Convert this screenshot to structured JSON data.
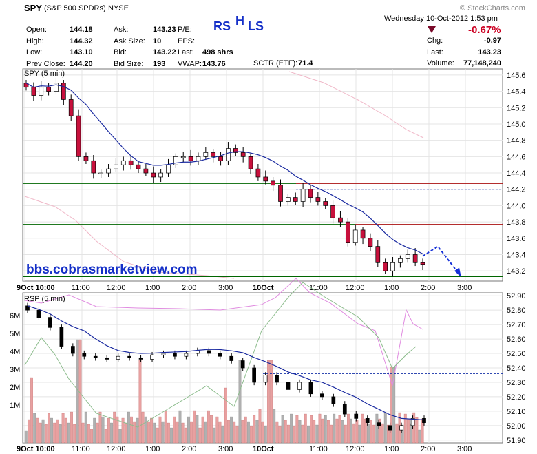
{
  "header": {
    "symbol": "SPY",
    "desc": "(S&P 500 SPDRs)",
    "exchange": "NYSE",
    "watermark": "© StockCharts.com",
    "date_line": "Wednesday  10-Oct-2012  1:53 pm",
    "change_pct": "-0.67%",
    "fields": [
      {
        "label": "Open:",
        "value": "144.18"
      },
      {
        "label": "High:",
        "value": "144.32"
      },
      {
        "label": "Low:",
        "value": "143.10"
      },
      {
        "label": "Prev Close:",
        "value": "144.20"
      }
    ],
    "fields2": [
      {
        "label": "Ask:",
        "value": "143.23"
      },
      {
        "label": "Ask Size:",
        "value": "10"
      },
      {
        "label": "Bid:",
        "value": "143.22"
      },
      {
        "label": "Bid Size:",
        "value": "193"
      }
    ],
    "fields3": [
      {
        "label": "P/E:",
        "value": ""
      },
      {
        "label": "EPS:",
        "value": ""
      },
      {
        "label": "Last:",
        "value": "498 shrs"
      },
      {
        "label": "VWAP:",
        "value": "143.76"
      }
    ],
    "sctr_label": "SCTR (ETF):",
    "sctr_value": "71.4",
    "right": [
      {
        "label": "Chg:",
        "value": "-0.97"
      },
      {
        "label": "Last:",
        "value": "143.23"
      },
      {
        "label": "Volume:",
        "value": "77,148,240"
      }
    ]
  },
  "annotation": {
    "rs": "RS",
    "h": "H",
    "ls": "LS",
    "site": "bbs.cobrasmarketview.com"
  },
  "colors": {
    "candle_down": "#c8103c",
    "candle_up": "#ffffff",
    "ma": "#1a2aa0",
    "support": "#006600",
    "resistance": "#aa1111",
    "projection": "#1530d8",
    "vol_down": "#e8a0a0",
    "vol_up": "#b0b0b0",
    "rsp_purple": "#e08be0",
    "rsp_green": "#8cbc8c"
  },
  "chart_data": [
    {
      "type": "candlestick",
      "title": "SPY (5 min)",
      "ylim": [
        143.1,
        145.65
      ],
      "y_ticks": [
        "145.6",
        "145.4",
        "145.2",
        "145.0",
        "144.8",
        "144.6",
        "144.4",
        "144.2",
        "144.0",
        "143.8",
        "143.6",
        "143.4",
        "143.2"
      ],
      "x_ticks": [
        "9Oct 10:00",
        "11:00",
        "12:00",
        "1:00",
        "2:00",
        "3:00",
        "10Oct",
        "11:00",
        "12:00",
        "1:00",
        "2:00",
        "3:00"
      ],
      "close_path": [
        145.45,
        145.35,
        145.45,
        145.4,
        145.5,
        145.3,
        145.1,
        144.6,
        144.55,
        144.4,
        144.4,
        144.45,
        144.5,
        144.55,
        144.5,
        144.45,
        144.4,
        144.35,
        144.4,
        144.5,
        144.6,
        144.6,
        144.55,
        144.6,
        144.65,
        144.6,
        144.55,
        144.7,
        144.65,
        144.6,
        144.45,
        144.35,
        144.3,
        144.25,
        144.05,
        144.1,
        144.05,
        144.2,
        144.1,
        144.05,
        144.0,
        143.85,
        143.8,
        143.55,
        143.7,
        143.6,
        143.5,
        143.3,
        143.2,
        143.3,
        143.35,
        143.4,
        143.3,
        143.28
      ],
      "support_lines": [
        144.27,
        143.77,
        143.13
      ],
      "resistance_lines": [
        144.27,
        143.77
      ],
      "projection": [
        143.38,
        143.5,
        143.15
      ]
    },
    {
      "type": "line",
      "title": "RSP (5 min)",
      "ylim": [
        51.88,
        52.92
      ],
      "y_ticks": [
        "52.90",
        "52.80",
        "52.70",
        "52.60",
        "52.50",
        "52.40",
        "52.30",
        "52.20",
        "52.10",
        "52.00",
        "51.90"
      ],
      "volume_ticks": [
        "6M",
        "5M",
        "4M",
        "3M",
        "2M",
        "1M"
      ],
      "x_ticks": [
        "9Oct 10:00",
        "11:00",
        "12:00",
        "1:00",
        "2:00",
        "3:00",
        "10Oct",
        "11:00",
        "12:00",
        "1:00",
        "2:00",
        "3:00"
      ],
      "close_path": [
        52.8,
        52.75,
        52.68,
        52.55,
        52.5,
        52.48,
        52.47,
        52.46,
        52.48,
        52.47,
        52.46,
        52.49,
        52.5,
        52.48,
        52.5,
        52.52,
        52.5,
        52.48,
        52.45,
        52.4,
        52.3,
        52.35,
        52.3,
        52.25,
        52.3,
        52.22,
        52.2,
        52.15,
        52.08,
        52.05,
        52.02,
        52.0,
        51.97,
        52.0,
        52.05,
        52.02
      ],
      "resistance_line": 52.36
    }
  ]
}
